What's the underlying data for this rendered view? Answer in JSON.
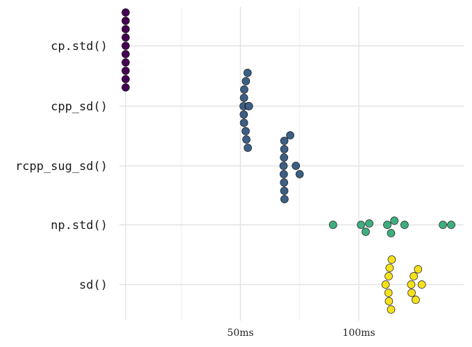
{
  "chart_data": {
    "type": "scatter",
    "subtype": "beeswarm",
    "orientation": "horizontal",
    "categories": [
      "cp.std()",
      "cpp_sd()",
      "rcpp_sug_sd()",
      "np.std()",
      "sd()"
    ],
    "x_ticks": [
      {
        "value": 50,
        "label": "50ms"
      },
      {
        "value": 100,
        "label": "100ms"
      }
    ],
    "xlim": [
      -1,
      145
    ],
    "grid": true,
    "legend": "none",
    "series": [
      {
        "category": "cp.std()",
        "color": "#440154",
        "values": [
          1.5,
          1.5,
          1.5,
          1.5,
          1.5,
          1.5,
          1.5,
          1.5,
          1.5,
          1.5
        ]
      },
      {
        "category": "cpp_sd()",
        "color": "#3b5f85",
        "values": [
          51.3,
          51.4,
          51.5,
          51.5,
          51.6,
          52.2,
          52.3,
          52.5,
          53.0,
          53.1,
          53.4,
          53.6
        ]
      },
      {
        "category": "rcpp_sug_sd()",
        "color": "#3b5f85",
        "values": [
          68.2,
          68.3,
          68.4,
          68.4,
          68.5,
          68.5,
          68.5,
          68.6,
          71.0,
          73.4,
          75.0
        ]
      },
      {
        "category": "np.std()",
        "color": "#3fae7e",
        "values": [
          89.1,
          100.9,
          102.9,
          104.4,
          112.0,
          113.6,
          115.0,
          119.3,
          135.5,
          139.0
        ]
      },
      {
        "category": "sd()",
        "color": "#f5e11b",
        "values": [
          111.3,
          112.5,
          112.6,
          112.7,
          113.0,
          113.6,
          113.9,
          122.1,
          122.3,
          123.2,
          124.0,
          125.0,
          126.6
        ]
      }
    ]
  }
}
